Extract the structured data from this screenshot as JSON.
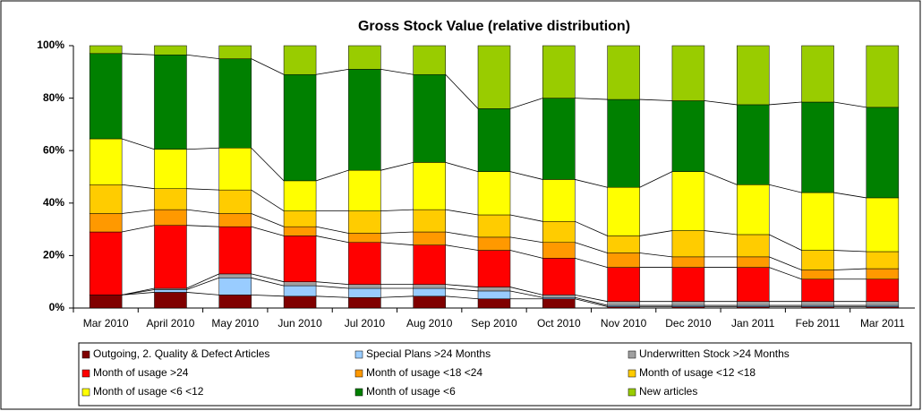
{
  "chart_data": {
    "type": "stacked_bar_100",
    "title": "Gross Stock Value (relative distribution)",
    "categories": [
      "Mar 2010",
      "April 2010",
      "May 2010",
      "Jun 2010",
      "Jul 2010",
      "Aug 2010",
      "Sep 2010",
      "Oct 2010",
      "Nov 2010",
      "Dec 2010",
      "Jan 2011",
      "Feb 2011",
      "Mar 2011"
    ],
    "series": [
      {
        "name": "Outgoing, 2. Quality & Defect Articles",
        "color": "#800000",
        "values": [
          5,
          6,
          5,
          4.5,
          4,
          4.5,
          3.5,
          3.5,
          0.5,
          0.5,
          0.5,
          0.5,
          0.5
        ]
      },
      {
        "name": "Special Plans >24 Months",
        "color": "#99ccff",
        "values": [
          0,
          1,
          6.5,
          4,
          3.5,
          3,
          3,
          0.5,
          0.5,
          0.5,
          0.5,
          0.5,
          0.5
        ]
      },
      {
        "name": "Underwritten Stock >24 Months",
        "color": "#a0a0a0",
        "values": [
          0,
          0.5,
          1.5,
          1.5,
          1.5,
          1.5,
          1.5,
          1,
          1.5,
          1.5,
          1.5,
          1.5,
          1.5
        ]
      },
      {
        "name": "Month of usage >24",
        "color": "#ff0000",
        "values": [
          24,
          24,
          18,
          17.5,
          16,
          15,
          14,
          14,
          13,
          13,
          13,
          8.5,
          8.5
        ]
      },
      {
        "name": "Month of usage <18 <24",
        "color": "#ff9900",
        "values": [
          7,
          6,
          5,
          3.5,
          3.5,
          5,
          5,
          6,
          5.5,
          4,
          4,
          3.5,
          4
        ]
      },
      {
        "name": "Month of usage <12 <18",
        "color": "#ffcc00",
        "values": [
          11,
          8,
          9,
          6,
          8.5,
          8.5,
          8.5,
          8,
          6.5,
          10,
          8.5,
          7.5,
          6.5
        ]
      },
      {
        "name": "Month of usage <6 <12",
        "color": "#ffff00",
        "values": [
          17.5,
          15,
          16,
          11.5,
          15.5,
          18,
          16.5,
          16,
          18.5,
          22.5,
          19,
          22,
          20.5
        ]
      },
      {
        "name": "Month of usage <6",
        "color": "#008000",
        "values": [
          32.5,
          36,
          34,
          40.5,
          38.5,
          33.5,
          24,
          31,
          33.5,
          27,
          30.5,
          34.5,
          34.5
        ]
      },
      {
        "name": "New articles",
        "color": "#99cc00",
        "values": [
          3,
          3.5,
          5,
          11,
          9,
          11,
          24,
          20,
          20.5,
          21,
          22.5,
          21.5,
          23.5
        ]
      }
    ],
    "ylim": [
      0,
      100
    ],
    "yticks": [
      {
        "value": 0,
        "label": "0%"
      },
      {
        "value": 20,
        "label": "20%"
      },
      {
        "value": 40,
        "label": "40%"
      },
      {
        "value": 60,
        "label": "60%"
      },
      {
        "value": 80,
        "label": "80%"
      },
      {
        "value": 100,
        "label": "100%"
      }
    ],
    "legend": "bottom"
  }
}
